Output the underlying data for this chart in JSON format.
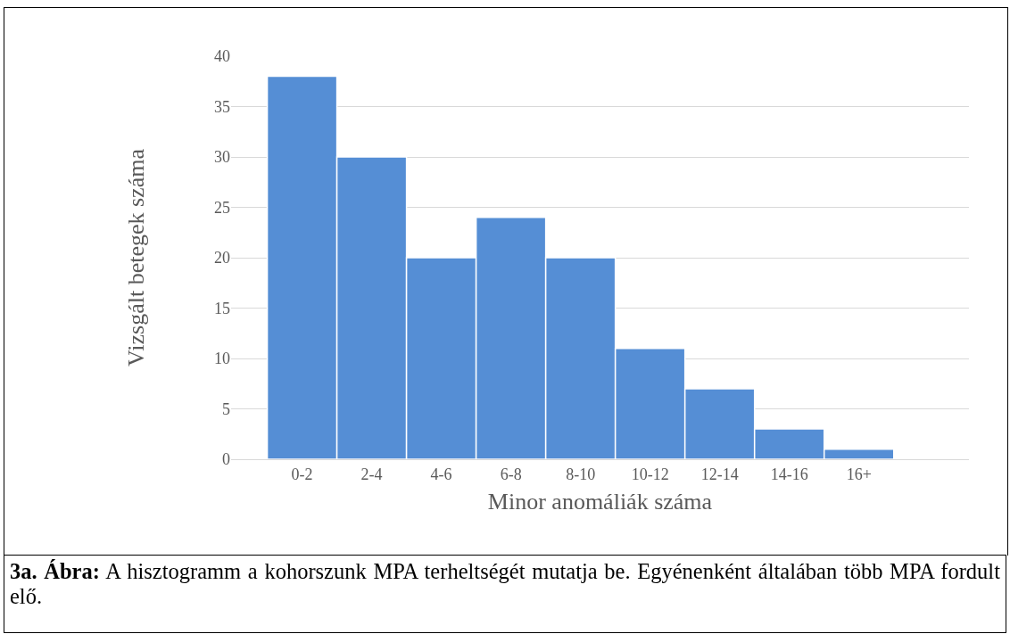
{
  "chart_data": {
    "type": "bar",
    "categories": [
      "0-2",
      "2-4",
      "4-6",
      "6-8",
      "8-10",
      "10-12",
      "12-14",
      "14-16",
      "16+"
    ],
    "values": [
      38,
      30,
      20,
      24,
      20,
      11,
      7,
      3,
      1
    ],
    "color": "#558ed5",
    "xlabel": "Minor anomáliák száma",
    "ylabel": "Vizsgált betegek száma",
    "ylim": [
      0,
      40
    ],
    "yticks": [
      0,
      5,
      10,
      15,
      20,
      25,
      30,
      35,
      40
    ],
    "grid": "y",
    "annotations": [
      "3a. Ábra: A hisztogramm a kohorszunk MPA terheltségét mutatja be. Egyénenként általában több MPA fordult elő."
    ]
  }
}
